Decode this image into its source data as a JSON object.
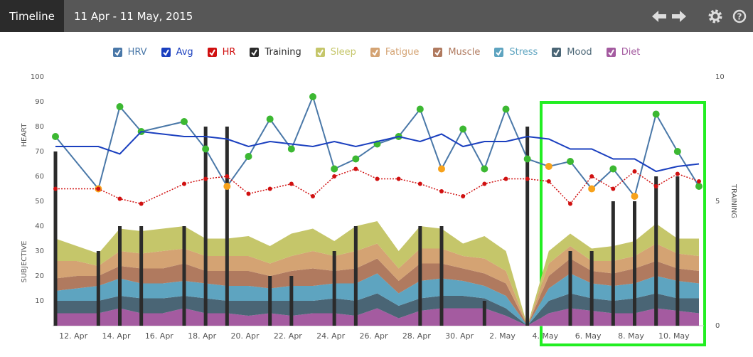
{
  "header": {
    "tab": "Timeline",
    "range": "11 Apr - 11 May, 2015"
  },
  "chart_data": {
    "type": "combo",
    "ylabels": [
      "HEART",
      "SUBJECTIVE"
    ],
    "y2label": "TRAINING",
    "categories": [
      null,
      "12. Apr",
      null,
      "14. Apr",
      null,
      "16. Apr",
      null,
      "18. Apr",
      null,
      "20. Apr",
      null,
      "22. Apr",
      null,
      "24. Apr",
      null,
      "26. Apr",
      null,
      "28. Apr",
      null,
      "30. Apr",
      null,
      "2. May",
      null,
      "4. May",
      null,
      "6. May",
      null,
      "8. May",
      null,
      "10. May",
      null
    ],
    "ylim": [
      0,
      100
    ],
    "yticks": [
      10,
      20,
      30,
      40,
      50,
      60,
      70,
      80,
      90,
      100
    ],
    "y2lim": [
      0,
      10
    ],
    "y2ticks": [
      0,
      5,
      10
    ],
    "connect_gaps": true,
    "grid": false,
    "series": [
      {
        "name": "HRV",
        "kind": "line",
        "color": "#4a78a8",
        "markers": true,
        "values": [
          76,
          null,
          55,
          88,
          78,
          null,
          82,
          71,
          56,
          68,
          83,
          71,
          92,
          63,
          67,
          73,
          76,
          87,
          63,
          79,
          63,
          87,
          67,
          64,
          66,
          55,
          63,
          52,
          85,
          70,
          56
        ],
        "marker_colors": [
          "#3cb832",
          null,
          "#f7a21b",
          "#3cb832",
          "#3cb832",
          null,
          "#3cb832",
          "#3cb832",
          "#f7a21b",
          "#3cb832",
          "#3cb832",
          "#3cb832",
          "#3cb832",
          "#3cb832",
          "#3cb832",
          "#3cb832",
          "#3cb832",
          "#3cb832",
          "#f7a21b",
          "#3cb832",
          "#3cb832",
          "#3cb832",
          "#3cb832",
          "#f7a21b",
          "#3cb832",
          "#f7a21b",
          "#3cb832",
          "#f7a21b",
          "#3cb832",
          "#3cb832",
          "#3cb832"
        ]
      },
      {
        "name": "Avg",
        "kind": "line",
        "color": "#1a3fbf",
        "markers": false,
        "values": [
          72,
          72,
          72,
          69,
          78,
          77,
          76,
          76,
          75,
          72,
          74,
          73,
          72,
          74,
          72,
          74,
          76,
          74,
          77,
          72,
          74,
          74,
          76,
          75,
          71,
          71,
          67,
          67,
          62,
          64,
          65
        ]
      },
      {
        "name": "HR",
        "kind": "line",
        "color": "#d01010",
        "markers": true,
        "line_style": "dotted",
        "values": [
          55,
          null,
          55,
          51,
          49,
          null,
          57,
          59,
          60,
          53,
          55,
          57,
          52,
          60,
          63,
          59,
          59,
          57,
          54,
          52,
          57,
          59,
          59,
          58,
          49,
          60,
          55,
          62,
          56,
          61,
          58
        ]
      },
      {
        "name": "Training",
        "kind": "bar",
        "axis": "y2",
        "color": "#2b2b2b",
        "values": [
          7,
          null,
          3,
          4,
          4,
          null,
          4,
          8,
          8,
          null,
          2,
          2,
          null,
          3,
          4,
          null,
          null,
          4,
          4,
          null,
          1,
          null,
          8,
          null,
          3,
          3,
          5,
          5,
          6,
          6,
          null
        ]
      },
      {
        "name": "Sleep",
        "kind": "area",
        "color": "#c5c66a",
        "values": [
          9,
          6,
          5,
          9,
          9,
          9,
          9,
          7,
          7,
          8,
          7,
          9,
          9,
          6,
          10,
          9,
          7,
          9,
          8,
          5,
          9,
          8,
          0,
          5,
          5,
          5,
          6,
          6,
          8,
          6,
          7
        ]
      },
      {
        "name": "Fatigue",
        "kind": "area",
        "color": "#d4a373",
        "values": [
          7,
          6,
          4,
          6,
          6,
          7,
          6,
          6,
          6,
          6,
          5,
          6,
          7,
          6,
          7,
          6,
          5,
          6,
          6,
          5,
          6,
          5,
          0,
          5,
          5,
          4,
          5,
          5,
          7,
          6,
          6
        ]
      },
      {
        "name": "Muscle",
        "kind": "area",
        "color": "#b07a5f",
        "values": [
          5,
          5,
          4,
          5,
          6,
          6,
          7,
          5,
          6,
          6,
          5,
          6,
          7,
          5,
          6,
          6,
          5,
          7,
          6,
          5,
          5,
          5,
          0,
          5,
          6,
          5,
          5,
          6,
          6,
          5,
          5
        ]
      },
      {
        "name": "Stress",
        "kind": "area",
        "color": "#5ea4c0",
        "values": [
          4,
          5,
          6,
          7,
          6,
          6,
          6,
          6,
          6,
          6,
          5,
          6,
          6,
          6,
          7,
          8,
          5,
          7,
          7,
          6,
          5,
          5,
          0,
          5,
          8,
          6,
          6,
          6,
          7,
          7,
          6
        ]
      },
      {
        "name": "Mood",
        "kind": "area",
        "color": "#4a6575",
        "values": [
          5,
          5,
          5,
          5,
          6,
          6,
          5,
          6,
          5,
          6,
          5,
          6,
          5,
          6,
          6,
          6,
          5,
          5,
          5,
          5,
          4,
          3,
          0,
          5,
          6,
          5,
          5,
          6,
          6,
          5,
          6
        ]
      },
      {
        "name": "Diet",
        "kind": "area",
        "color": "#a45ba0",
        "values": [
          5,
          5,
          5,
          7,
          5,
          5,
          7,
          5,
          5,
          4,
          5,
          4,
          5,
          5,
          4,
          7,
          3,
          6,
          7,
          7,
          7,
          4,
          0,
          5,
          7,
          6,
          5,
          5,
          7,
          6,
          5
        ]
      }
    ]
  }
}
